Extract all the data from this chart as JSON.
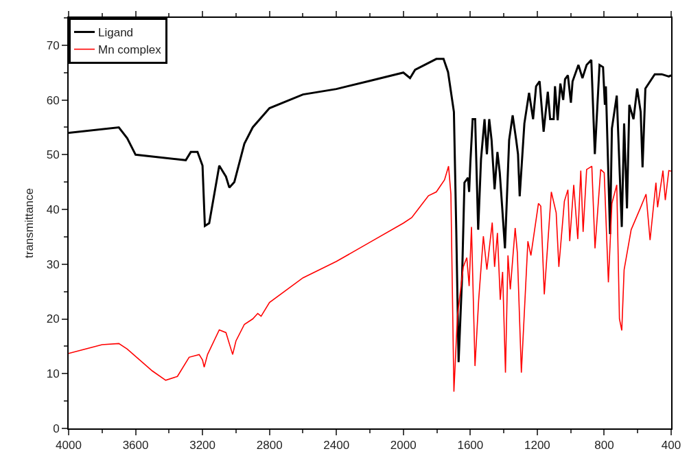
{
  "chart_data": {
    "type": "line",
    "ylabel": "transmittance",
    "xlim": [
      4000,
      400
    ],
    "xticks": [
      4000,
      3600,
      3200,
      2800,
      2400,
      2000,
      1600,
      1200,
      800,
      400
    ],
    "ylim": [
      0,
      75
    ],
    "yticks": [
      0,
      10,
      20,
      30,
      40,
      50,
      60,
      70
    ],
    "legend": "top left",
    "marker": "none",
    "line_style": "solid",
    "series": [
      {
        "name": "Ligand",
        "color": "#000000",
        "x": [
          4000,
          3700,
          3650,
          3600,
          3300,
          3270,
          3230,
          3200,
          3186,
          3160,
          3100,
          3060,
          3040,
          3010,
          2950,
          2900,
          2800,
          2600,
          2400,
          2200,
          2000,
          1960,
          1930,
          1803,
          1760,
          1733,
          1698,
          1684,
          1670,
          1649,
          1635,
          1614,
          1607,
          1600,
          1586,
          1571,
          1553,
          1536,
          1515,
          1501,
          1487,
          1473,
          1455,
          1438,
          1424,
          1410,
          1393,
          1368,
          1347,
          1326,
          1315,
          1305,
          1277,
          1249,
          1225,
          1207,
          1186,
          1162,
          1137,
          1123,
          1102,
          1094,
          1078,
          1062,
          1045,
          1034,
          1017,
          999,
          989,
          954,
          930,
          905,
          877,
          856,
          828,
          807,
          796,
          790,
          765,
          754,
          725,
          695,
          681,
          664,
          650,
          625,
          603,
          582,
          571,
          554,
          498,
          456,
          414,
          400
        ],
        "values": [
          54,
          55,
          53,
          50,
          49,
          50.5,
          50.5,
          48,
          37,
          37.5,
          48,
          46,
          44,
          45,
          52,
          55,
          58.5,
          61,
          62,
          63.5,
          65,
          64,
          65.5,
          67.5,
          67.5,
          65.1,
          57.8,
          36.3,
          12.1,
          27.8,
          44.9,
          45.8,
          43.2,
          48.4,
          56.5,
          56.5,
          36.3,
          49.2,
          56.5,
          50.1,
          56.5,
          52.7,
          43.7,
          50.5,
          46.7,
          40.6,
          32.9,
          52.7,
          57.2,
          52.7,
          50.1,
          42.4,
          55.7,
          61.3,
          56.5,
          62.5,
          63.4,
          54.2,
          61.5,
          56.5,
          56.5,
          62.5,
          56.3,
          63,
          60,
          63.8,
          64.5,
          59.5,
          63.4,
          66.4,
          64,
          66.4,
          67.3,
          50.1,
          66.4,
          66,
          59.1,
          62.5,
          35.5,
          54.8,
          60.8,
          36.8,
          55.7,
          40.2,
          59.1,
          56.5,
          62.1,
          57.8,
          47.7,
          62.1,
          64.7,
          64.7,
          64.3,
          64.5
        ]
      },
      {
        "name": "Mn complex",
        "color": "#ff0000",
        "x": [
          4000,
          3800,
          3700,
          3650,
          3500,
          3420,
          3350,
          3280,
          3220,
          3200,
          3190,
          3170,
          3100,
          3060,
          3030,
          3020,
          3000,
          2950,
          2900,
          2870,
          2850,
          2800,
          2600,
          2400,
          2200,
          2000,
          1950,
          1900,
          1850,
          1803,
          1754,
          1730,
          1716,
          1698,
          1677,
          1642,
          1621,
          1607,
          1593,
          1572,
          1550,
          1522,
          1501,
          1469,
          1455,
          1438,
          1421,
          1407,
          1390,
          1375,
          1361,
          1332,
          1319,
          1295,
          1256,
          1238,
          1193,
          1179,
          1158,
          1116,
          1087,
          1071,
          1038,
          1017,
          1006,
          982,
          958,
          940,
          926,
          905,
          874,
          855,
          821,
          800,
          775,
          754,
          725,
          709,
          695,
          681,
          639,
          582,
          550,
          526,
          491,
          481,
          449,
          435,
          414,
          400
        ],
        "values": [
          13.7,
          15.3,
          15.5,
          14.5,
          10.5,
          8.8,
          9.5,
          13,
          13.5,
          12.5,
          11.2,
          13.5,
          18,
          17.5,
          14.5,
          13.5,
          16,
          19,
          20,
          21,
          20.5,
          23,
          27.5,
          30.5,
          34,
          37.5,
          38.5,
          40.5,
          42.5,
          43.2,
          45.4,
          47.9,
          42.8,
          6.7,
          20.5,
          29.5,
          31.2,
          26,
          36.8,
          11.4,
          23.5,
          35.1,
          29,
          37.6,
          29.5,
          35.7,
          23.5,
          28.6,
          10.2,
          31.6,
          25.4,
          36.6,
          32.1,
          10.2,
          34.2,
          31.6,
          41.1,
          40.6,
          24.5,
          43.2,
          39.4,
          29.5,
          41.5,
          43.6,
          34.2,
          44.5,
          34.6,
          47.1,
          35.9,
          47.3,
          47.9,
          32.9,
          47.3,
          46.7,
          26.7,
          41.1,
          44.5,
          20,
          17.9,
          29,
          36.3,
          40.4,
          42.8,
          34.4,
          44.9,
          40.4,
          47.1,
          41.7,
          47.1,
          47
        ]
      }
    ]
  }
}
